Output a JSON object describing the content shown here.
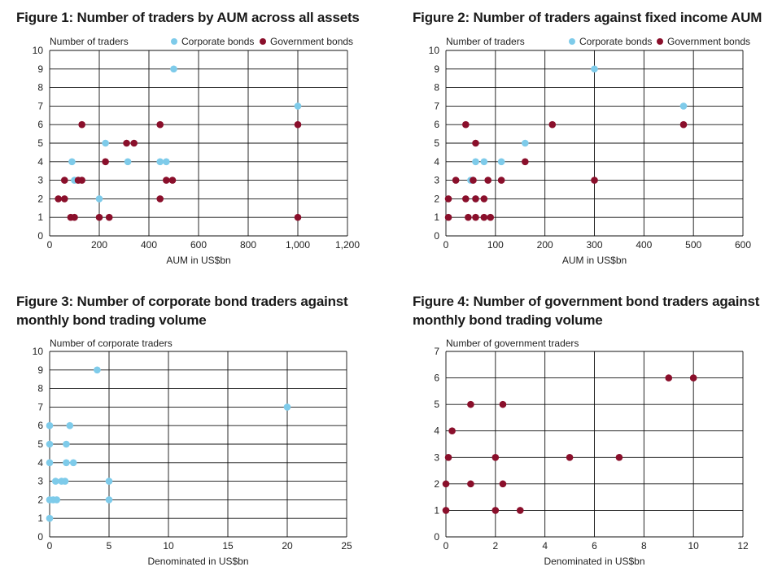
{
  "colors": {
    "corporate": "#7ecbea",
    "government": "#8a0f2b",
    "grid": "#111111"
  },
  "chart_data": [
    {
      "type": "scatter",
      "title": "Figure 1: Number of traders by AUM across all assets",
      "xlabel": "AUM in US$bn",
      "ylabel": "Number of traders",
      "xlim": [
        0,
        1200
      ],
      "ylim": [
        0,
        10
      ],
      "xticks": [
        0,
        200,
        400,
        600,
        800,
        1000,
        1200
      ],
      "xtick_labels": [
        "0",
        "200",
        "400",
        "600",
        "800",
        "1,000",
        "1,200"
      ],
      "yticks": [
        0,
        1,
        2,
        3,
        4,
        5,
        6,
        7,
        8,
        9,
        10
      ],
      "grid": true,
      "legend": "top-right",
      "series": [
        {
          "name": "Corporate bonds",
          "color": "corporate",
          "points": [
            [
              500,
              9
            ],
            [
              1000,
              7
            ],
            [
              225,
              5
            ],
            [
              90,
              4
            ],
            [
              315,
              4
            ],
            [
              445,
              4
            ],
            [
              470,
              4
            ],
            [
              100,
              3
            ],
            [
              200,
              2
            ]
          ]
        },
        {
          "name": "Government bonds",
          "color": "government",
          "points": [
            [
              130,
              6
            ],
            [
              445,
              6
            ],
            [
              1000,
              6
            ],
            [
              310,
              5
            ],
            [
              340,
              5
            ],
            [
              225,
              4
            ],
            [
              60,
              3
            ],
            [
              115,
              3
            ],
            [
              130,
              3
            ],
            [
              470,
              3
            ],
            [
              495,
              3
            ],
            [
              35,
              2
            ],
            [
              60,
              2
            ],
            [
              445,
              2
            ],
            [
              85,
              1
            ],
            [
              100,
              1
            ],
            [
              200,
              1
            ],
            [
              240,
              1
            ],
            [
              1000,
              1
            ]
          ]
        }
      ]
    },
    {
      "type": "scatter",
      "title": "Figure 2: Number of traders against fixed income AUM",
      "xlabel": "AUM in US$bn",
      "ylabel": "Number of traders",
      "xlim": [
        0,
        600
      ],
      "ylim": [
        0,
        10
      ],
      "xticks": [
        0,
        100,
        200,
        300,
        400,
        500,
        600
      ],
      "xtick_labels": [
        "0",
        "100",
        "200",
        "300",
        "400",
        "500",
        "600"
      ],
      "yticks": [
        0,
        1,
        2,
        3,
        4,
        5,
        6,
        7,
        8,
        9,
        10
      ],
      "grid": true,
      "legend": "top-right",
      "series": [
        {
          "name": "Corporate bonds",
          "color": "corporate",
          "points": [
            [
              300,
              9
            ],
            [
              480,
              7
            ],
            [
              160,
              5
            ],
            [
              60,
              4
            ],
            [
              77,
              4
            ],
            [
              112,
              4
            ],
            [
              50,
              3
            ],
            [
              60,
              2
            ]
          ]
        },
        {
          "name": "Government bonds",
          "color": "government",
          "points": [
            [
              40,
              6
            ],
            [
              215,
              6
            ],
            [
              480,
              6
            ],
            [
              60,
              5
            ],
            [
              160,
              4
            ],
            [
              20,
              3
            ],
            [
              55,
              3
            ],
            [
              85,
              3
            ],
            [
              112,
              3
            ],
            [
              300,
              3
            ],
            [
              5,
              2
            ],
            [
              40,
              2
            ],
            [
              60,
              2
            ],
            [
              77,
              2
            ],
            [
              5,
              1
            ],
            [
              45,
              1
            ],
            [
              60,
              1
            ],
            [
              77,
              1
            ],
            [
              90,
              1
            ]
          ]
        }
      ]
    },
    {
      "type": "scatter",
      "title": "Figure 3: Number of corporate bond traders against monthly bond trading volume",
      "xlabel": "Denominated in US$bn",
      "ylabel": "Number of corporate traders",
      "xlim": [
        0,
        25
      ],
      "ylim": [
        0,
        10
      ],
      "xticks": [
        0,
        5,
        10,
        15,
        20,
        25
      ],
      "xtick_labels": [
        "0",
        "5",
        "10",
        "15",
        "20",
        "25"
      ],
      "yticks": [
        0,
        1,
        2,
        3,
        4,
        5,
        6,
        7,
        8,
        9,
        10
      ],
      "grid": true,
      "series": [
        {
          "color": "corporate",
          "points": [
            [
              4,
              9
            ],
            [
              20,
              7
            ],
            [
              0,
              6
            ],
            [
              1.7,
              6
            ],
            [
              0,
              5
            ],
            [
              1.4,
              5
            ],
            [
              0,
              4
            ],
            [
              1.4,
              4
            ],
            [
              2,
              4
            ],
            [
              0.5,
              3
            ],
            [
              1,
              3
            ],
            [
              1.3,
              3
            ],
            [
              5,
              3
            ],
            [
              0,
              2
            ],
            [
              0.3,
              2
            ],
            [
              0.6,
              2
            ],
            [
              5,
              2
            ],
            [
              0,
              1
            ]
          ]
        }
      ]
    },
    {
      "type": "scatter",
      "title": "Figure 4: Number of government bond traders against monthly bond trading volume",
      "xlabel": "Denominated in US$bn",
      "ylabel": "Number of government traders",
      "xlim": [
        0,
        12
      ],
      "ylim": [
        0,
        7
      ],
      "xticks": [
        0,
        2,
        4,
        6,
        8,
        10,
        12
      ],
      "xtick_labels": [
        "0",
        "2",
        "4",
        "6",
        "8",
        "10",
        "12"
      ],
      "yticks": [
        0,
        1,
        2,
        3,
        4,
        5,
        6,
        7
      ],
      "grid": true,
      "series": [
        {
          "color": "government",
          "points": [
            [
              9,
              6
            ],
            [
              10,
              6
            ],
            [
              1,
              5
            ],
            [
              2.3,
              5
            ],
            [
              0.25,
              4
            ],
            [
              0.1,
              3
            ],
            [
              2,
              3
            ],
            [
              5,
              3
            ],
            [
              7,
              3
            ],
            [
              0,
              2
            ],
            [
              1,
              2
            ],
            [
              2.3,
              2
            ],
            [
              0,
              1
            ],
            [
              2,
              1
            ],
            [
              3,
              1
            ]
          ]
        }
      ]
    }
  ]
}
